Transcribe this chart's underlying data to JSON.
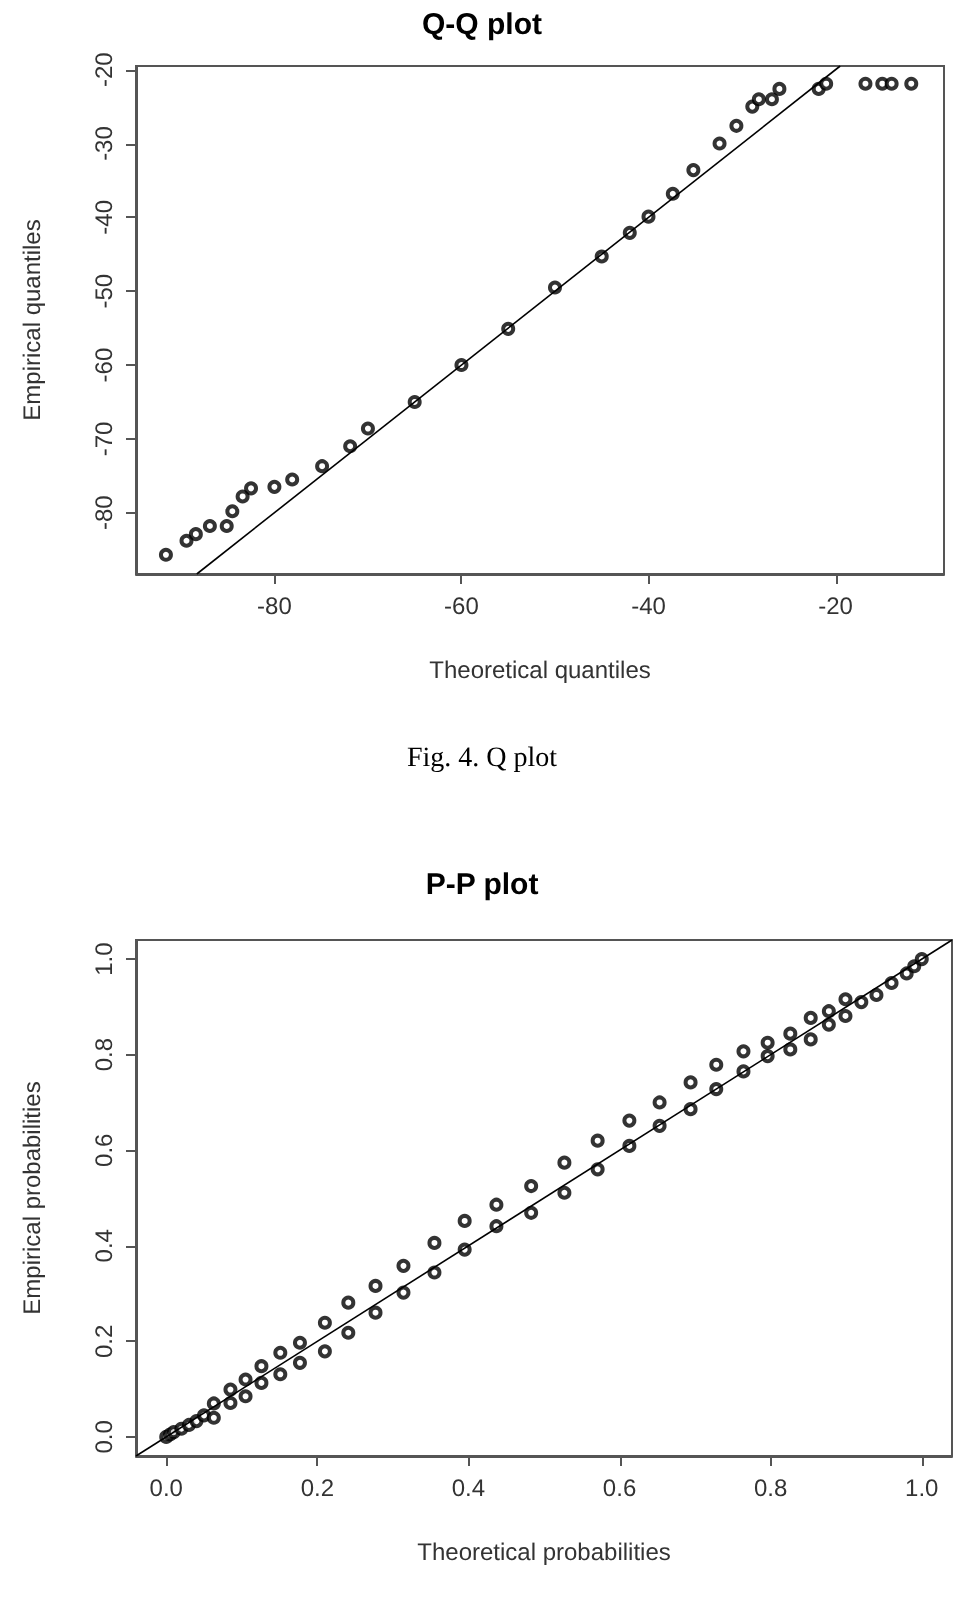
{
  "chart_data": [
    {
      "type": "scatter",
      "title": "Q-Q plot",
      "xlabel": "Theoretical quantiles",
      "ylabel": "Empirical quantiles",
      "annotations": [
        "Fig. 4.  Q plot"
      ],
      "xlim": [
        -94.8,
        -8.4
      ],
      "ylim": [
        -88.3,
        -19.5
      ],
      "xticks": [
        -80,
        -60,
        -40,
        -20
      ],
      "yticks": [
        -80,
        -70,
        -60,
        -50,
        -40,
        -30,
        -20
      ],
      "grid": false,
      "marker": "circle",
      "series": [
        {
          "color": "#000000",
          "x": [
            -91.6,
            -89.4,
            -88.4,
            -86.9,
            -85.1,
            -84.5,
            -83.4,
            -82.5,
            -80,
            -78.1,
            -74.9,
            -71.9,
            -70,
            -65,
            -60,
            -55,
            -50,
            -45,
            -42,
            -40,
            -37.4,
            -35.2,
            -32.4,
            -30.6,
            -28.9,
            -28.2,
            -26.8,
            -26,
            -21.8,
            -21,
            -16.8,
            -15,
            -14,
            -11.9
          ],
          "values": [
            -85.7,
            -83.8,
            -82.9,
            -81.8,
            -81.8,
            -79.8,
            -77.8,
            -76.7,
            -76.5,
            -75.5,
            -73.7,
            -71,
            -68.6,
            -65,
            -60,
            -55.1,
            -49.5,
            -45.3,
            -42.1,
            -39.9,
            -36.8,
            -33.6,
            -30,
            -27.6,
            -25,
            -24,
            -24,
            -22.6,
            -22.6,
            -21.9,
            -21.9,
            -21.9,
            -21.9,
            -21.9
          ]
        },
        {
          "type": "line",
          "color": "#000000",
          "x": [
            -88.3,
            -19.5
          ],
          "values": [
            -88.3,
            -19.5
          ],
          "marker": "none"
        }
      ]
    },
    {
      "type": "scatter",
      "title": "P-P plot",
      "xlabel": "Theoretical probabilities",
      "ylabel": "Empirical probabilities",
      "xlim": [
        -0.04,
        1.04
      ],
      "ylim": [
        -0.04,
        1.04
      ],
      "xticks": [
        {
          "value": 0,
          "label": "0.0"
        },
        0.2,
        0.4,
        0.6,
        0.8,
        {
          "value": 1,
          "label": "1.0"
        }
      ],
      "yticks": [
        {
          "value": 0,
          "label": "0.0"
        },
        0.2,
        0.4,
        0.6,
        0.8,
        {
          "value": 1,
          "label": "1.0"
        }
      ],
      "grid": false,
      "marker": "circle",
      "series": [
        {
          "color": "#000000",
          "x": [
            0,
            0.005,
            0.01,
            0.02,
            0.03,
            0.04,
            0.05,
            0.063,
            0.063,
            0.085,
            0.085,
            0.105,
            0.105,
            0.126,
            0.126,
            0.151,
            0.151,
            0.177,
            0.177,
            0.21,
            0.21,
            0.241,
            0.241,
            0.277,
            0.277,
            0.314,
            0.314,
            0.355,
            0.355,
            0.395,
            0.395,
            0.437,
            0.437,
            0.483,
            0.483,
            0.527,
            0.527,
            0.571,
            0.571,
            0.613,
            0.613,
            0.653,
            0.653,
            0.694,
            0.694,
            0.728,
            0.728,
            0.764,
            0.764,
            0.796,
            0.796,
            0.826,
            0.826,
            0.853,
            0.853,
            0.877,
            0.877,
            0.899,
            0.899,
            0.92,
            0.94,
            0.96,
            0.98,
            0.99,
            1
          ],
          "values": [
            0,
            0.005,
            0.01,
            0.017,
            0.025,
            0.033,
            0.045,
            0.04,
            0.07,
            0.071,
            0.099,
            0.085,
            0.12,
            0.113,
            0.148,
            0.131,
            0.176,
            0.155,
            0.197,
            0.179,
            0.239,
            0.218,
            0.281,
            0.26,
            0.316,
            0.302,
            0.358,
            0.344,
            0.406,
            0.392,
            0.452,
            0.441,
            0.486,
            0.469,
            0.525,
            0.511,
            0.574,
            0.56,
            0.62,
            0.609,
            0.662,
            0.651,
            0.7,
            0.686,
            0.742,
            0.728,
            0.779,
            0.765,
            0.807,
            0.797,
            0.825,
            0.811,
            0.844,
            0.832,
            0.877,
            0.863,
            0.891,
            0.881,
            0.916,
            0.91,
            0.925,
            0.95,
            0.97,
            0.985,
            1
          ]
        },
        {
          "type": "line",
          "color": "#000000",
          "x": [
            -0.04,
            1.04
          ],
          "values": [
            -0.04,
            1.04
          ],
          "marker": "none"
        }
      ]
    }
  ]
}
